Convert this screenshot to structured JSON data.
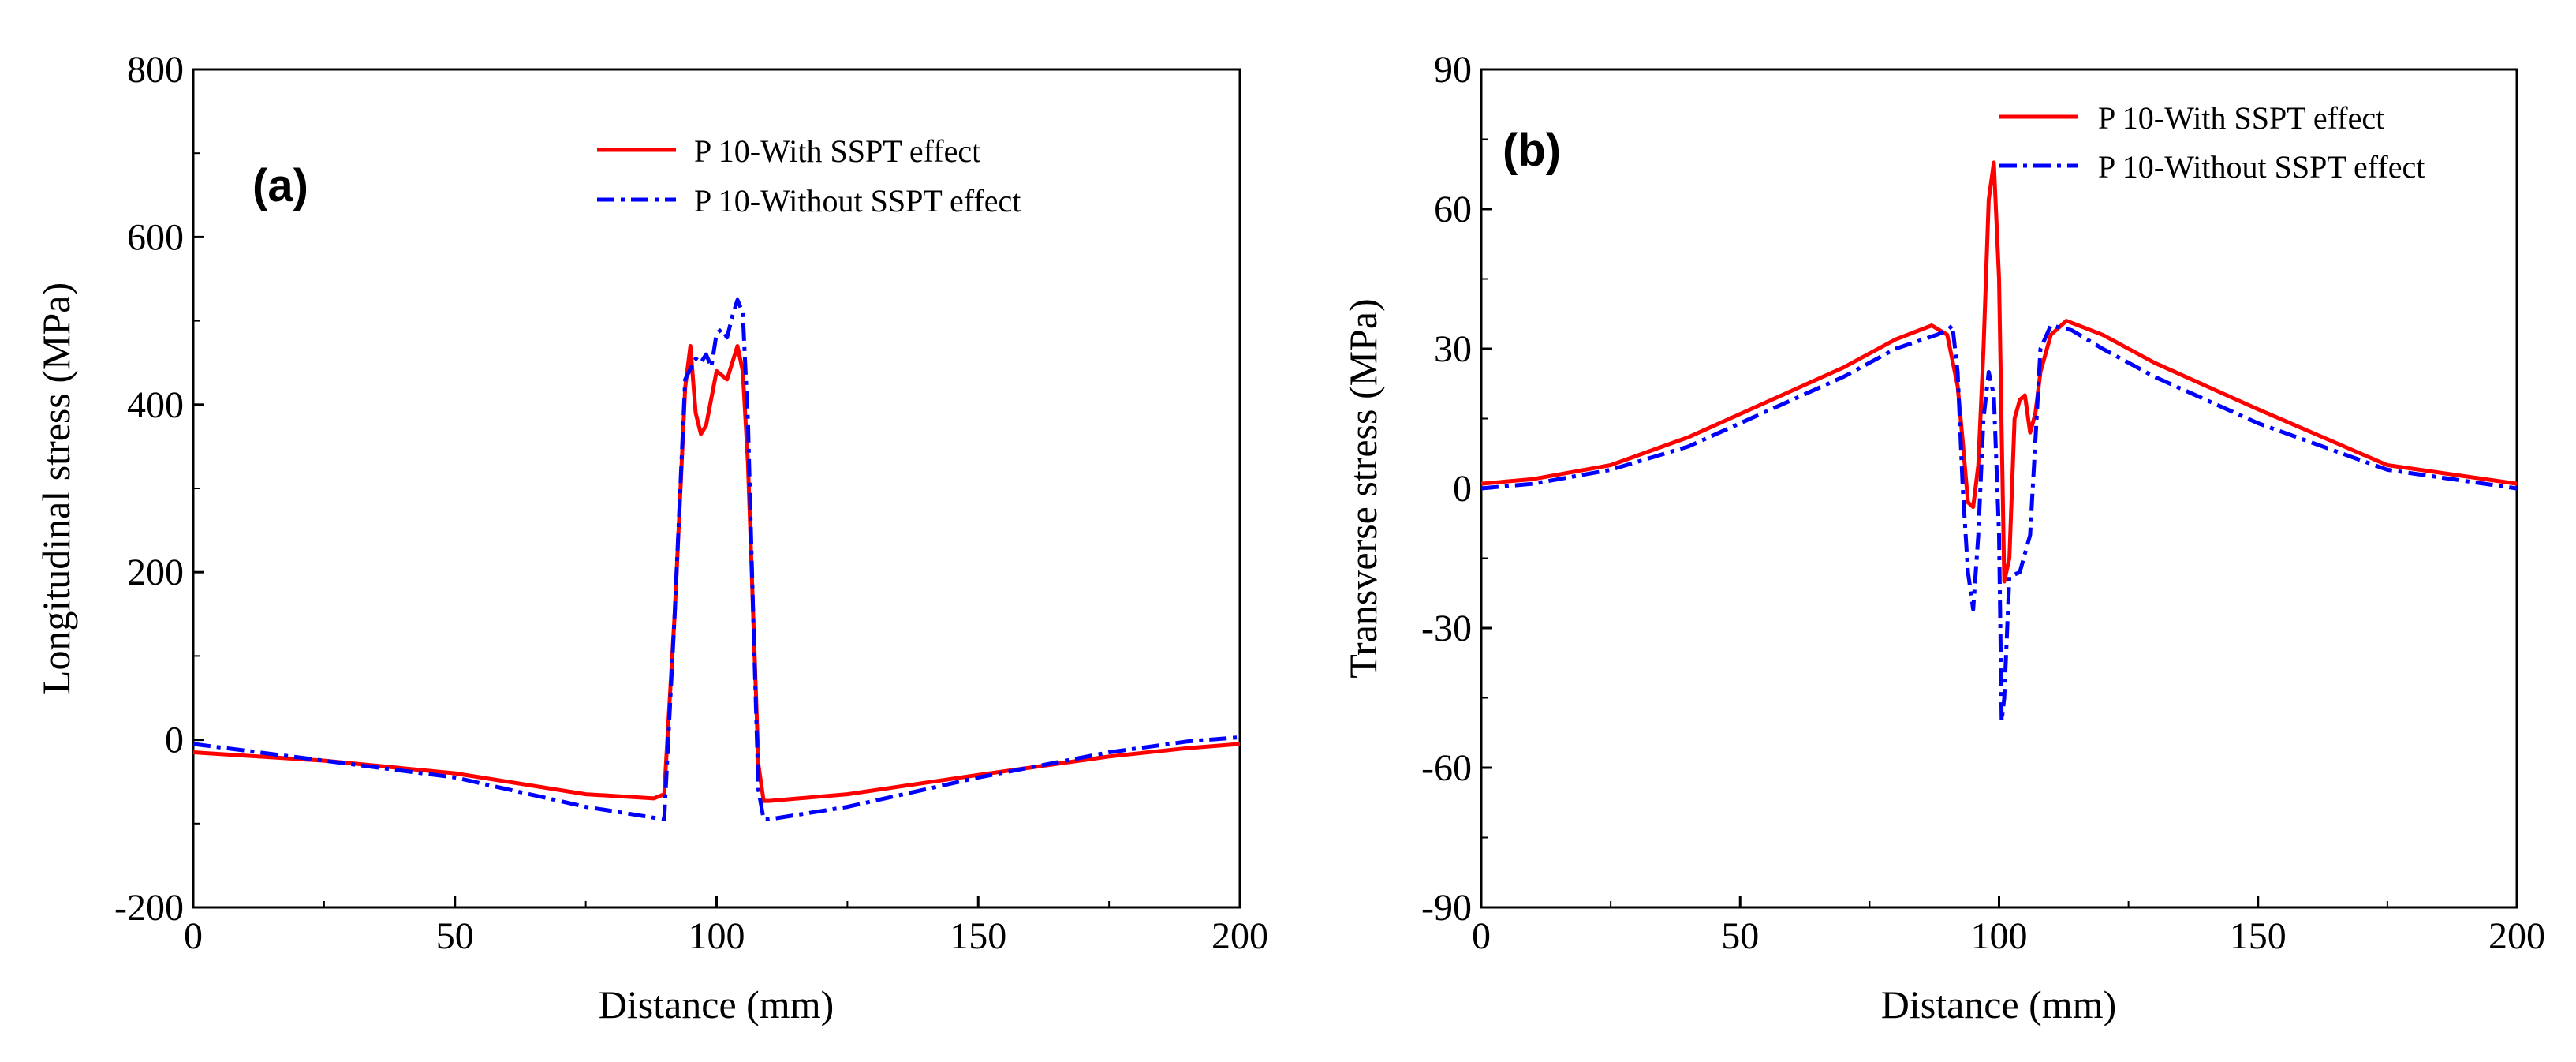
{
  "chart_data": [
    {
      "type": "line",
      "panel_label": "(a)",
      "xlabel": "Distance (mm)",
      "ylabel": "Longitudinal stress (MPa)",
      "xlim": [
        0,
        200
      ],
      "ylim": [
        -200,
        800
      ],
      "xticks": [
        0,
        50,
        100,
        150,
        200
      ],
      "yticks": [
        -200,
        0,
        200,
        400,
        600,
        800
      ],
      "legend_position": "top-right",
      "series": [
        {
          "name": "P 10-With SSPT effect",
          "color": "#ff0000",
          "style": "solid",
          "x": [
            0,
            25,
            50,
            75,
            88,
            90,
            92,
            94,
            95,
            96,
            97,
            98,
            100,
            102,
            103,
            104,
            105,
            106,
            107,
            108,
            109,
            110,
            125,
            150,
            175,
            190,
            200
          ],
          "y": [
            -15,
            -25,
            -40,
            -65,
            -70,
            -65,
            150,
            420,
            470,
            390,
            365,
            375,
            440,
            430,
            450,
            470,
            440,
            330,
            150,
            -30,
            -73,
            -73,
            -65,
            -42,
            -20,
            -10,
            -5
          ]
        },
        {
          "name": "P 10-Without SSPT effect",
          "color": "#0000ff",
          "style": "dashdot",
          "x": [
            0,
            25,
            50,
            75,
            90,
            92,
            94,
            96,
            97,
            98,
            99,
            100,
            101,
            102,
            103,
            104,
            105,
            106,
            107,
            108,
            109,
            110,
            125,
            150,
            175,
            190,
            200
          ],
          "y": [
            -5,
            -25,
            -45,
            -80,
            -95,
            150,
            430,
            455,
            450,
            460,
            445,
            485,
            490,
            480,
            505,
            525,
            510,
            380,
            150,
            -60,
            -95,
            -95,
            -80,
            -45,
            -15,
            -2,
            3
          ]
        }
      ]
    },
    {
      "type": "line",
      "panel_label": "(b)",
      "xlabel": "Distance (mm)",
      "ylabel": "Transverse stress (MPa)",
      "xlim": [
        0,
        200
      ],
      "ylim": [
        -90,
        90
      ],
      "xticks": [
        0,
        50,
        100,
        150,
        200
      ],
      "yticks": [
        -90,
        -60,
        -30,
        0,
        30,
        60,
        90
      ],
      "legend_position": "top-right",
      "series": [
        {
          "name": "P 10-With SSPT effect",
          "color": "#ff0000",
          "style": "solid",
          "x": [
            0,
            10,
            25,
            40,
            50,
            60,
            70,
            80,
            87,
            90,
            92,
            93,
            94,
            95,
            96,
            97,
            98,
            99,
            100,
            101,
            102,
            103,
            104,
            105,
            106,
            107,
            108,
            110,
            113,
            120,
            130,
            150,
            175,
            200
          ],
          "y": [
            1,
            2,
            5,
            11,
            16,
            21,
            26,
            32,
            35,
            33,
            22,
            10,
            -3,
            -4,
            5,
            30,
            62,
            70,
            45,
            -20,
            -15,
            15,
            19,
            20,
            12,
            16,
            25,
            33,
            36,
            33,
            27,
            17,
            5,
            1
          ],
          "min_y": -20
        },
        {
          "name": "P 10-Without SSPT effect",
          "color": "#0000ff",
          "style": "dashdot",
          "x": [
            0,
            10,
            25,
            40,
            50,
            60,
            70,
            80,
            88,
            90,
            91,
            92,
            93,
            94,
            95,
            96,
            97,
            98,
            99,
            100,
            100.5,
            101,
            102,
            104,
            106,
            107,
            108,
            110,
            114,
            120,
            130,
            150,
            175,
            200
          ],
          "y": [
            0,
            1,
            4,
            9,
            14,
            19,
            24,
            30,
            33,
            34,
            35,
            25,
            0,
            -18,
            -26,
            -10,
            15,
            25,
            20,
            -10,
            -50,
            -45,
            -19,
            -18,
            -10,
            10,
            30,
            35,
            34,
            30,
            24,
            14,
            4,
            0
          ],
          "min_y": -51
        }
      ]
    }
  ]
}
